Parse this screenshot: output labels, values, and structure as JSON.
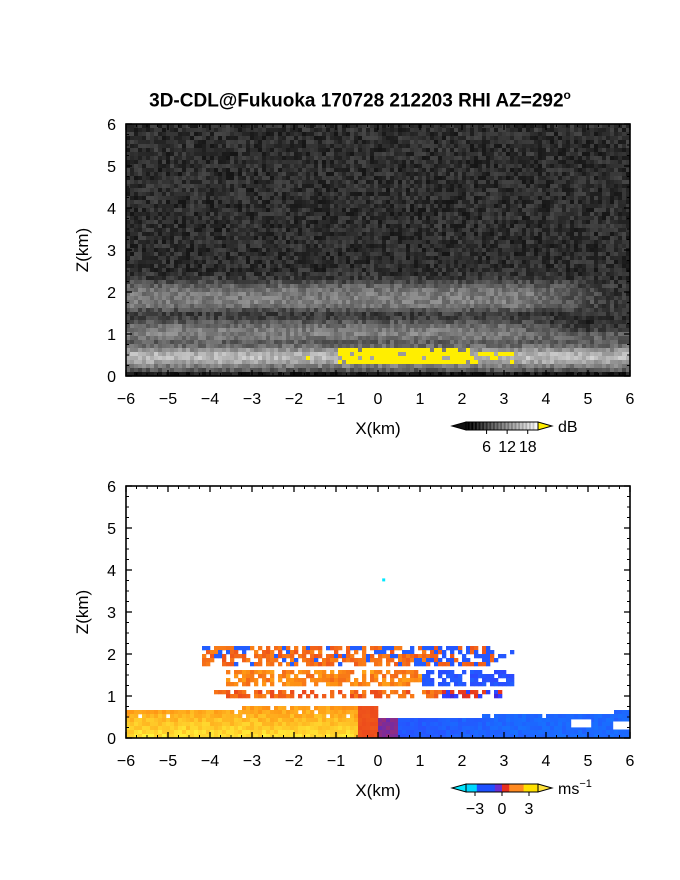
{
  "title": {
    "main": "3D-CDL@Fukuoka 170728 212203 RHI AZ=292",
    "sup": "o"
  },
  "chart_data": [
    {
      "type": "heatmap",
      "xlabel": "X(km)",
      "ylabel": "Z(km)",
      "xlim": [
        -6,
        6
      ],
      "ylim": [
        0,
        6
      ],
      "xticks": [
        "-6",
        "-5",
        "-4",
        "-3",
        "-2",
        "-1",
        "0",
        "1",
        "2",
        "3",
        "4",
        "5",
        "6"
      ],
      "yticks": [
        "0",
        "1",
        "2",
        "3",
        "4",
        "5",
        "6"
      ],
      "colorbar": {
        "unit": "dB",
        "ticks": [
          "6",
          "12",
          "18"
        ],
        "range": [
          0,
          21
        ]
      },
      "colors": {
        "low": "#1a1a1a",
        "high": "#ffffff",
        "over": "#ffee00"
      }
    },
    {
      "type": "heatmap",
      "xlabel": "X(km)",
      "ylabel": "Z(km)",
      "xlim": [
        -6,
        6
      ],
      "ylim": [
        0,
        6
      ],
      "xticks": [
        "-6",
        "-5",
        "-4",
        "-3",
        "-2",
        "-1",
        "0",
        "1",
        "2",
        "3",
        "4",
        "5",
        "6"
      ],
      "yticks": [
        "0",
        "1",
        "2",
        "3",
        "4",
        "5",
        "6"
      ],
      "colorbar": {
        "unit": "ms",
        "unit_sup": "−1",
        "ticks": [
          "−3",
          "0",
          "3"
        ],
        "range": [
          -4,
          4
        ]
      },
      "colors": {
        "neg": "#1e50ff",
        "zero": "#e8301e",
        "pos": "#ffe000",
        "under": "#00e8ff"
      }
    }
  ]
}
